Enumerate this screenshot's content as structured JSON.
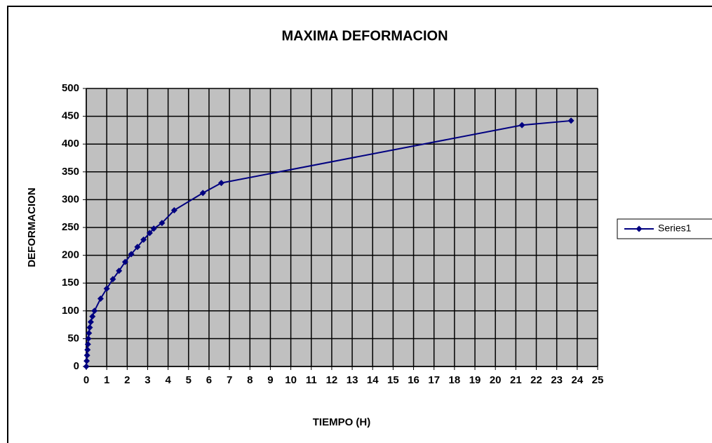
{
  "chart_data": {
    "type": "line",
    "title": "MAXIMA DEFORMACION",
    "x_label": "TIEMPO (H)",
    "y_label": "DEFORMACION",
    "x": [
      0,
      0.02,
      0.04,
      0.06,
      0.08,
      0.1,
      0.13,
      0.17,
      0.22,
      0.3,
      0.4,
      0.7,
      1.0,
      1.3,
      1.6,
      1.9,
      2.2,
      2.5,
      2.8,
      3.1,
      3.3,
      3.7,
      4.3,
      5.7,
      6.6,
      21.3,
      23.7
    ],
    "series": [
      {
        "name": "Series1",
        "color": "#000080",
        "values": [
          0,
          10,
          20,
          30,
          40,
          50,
          60,
          70,
          80,
          90,
          100,
          122,
          140,
          157,
          172,
          188,
          202,
          215,
          228,
          240,
          248,
          258,
          281,
          312,
          330,
          434,
          442
        ]
      }
    ],
    "xlim": [
      0,
      25
    ],
    "xticks": [
      0,
      1,
      2,
      3,
      4,
      5,
      6,
      7,
      8,
      9,
      10,
      11,
      12,
      13,
      14,
      15,
      16,
      17,
      18,
      19,
      20,
      21,
      22,
      23,
      24,
      25
    ],
    "ylim": [
      0,
      500
    ],
    "yticks": [
      0,
      50,
      100,
      150,
      200,
      250,
      300,
      350,
      400,
      450,
      500
    ],
    "grid": true,
    "legend": "right"
  }
}
